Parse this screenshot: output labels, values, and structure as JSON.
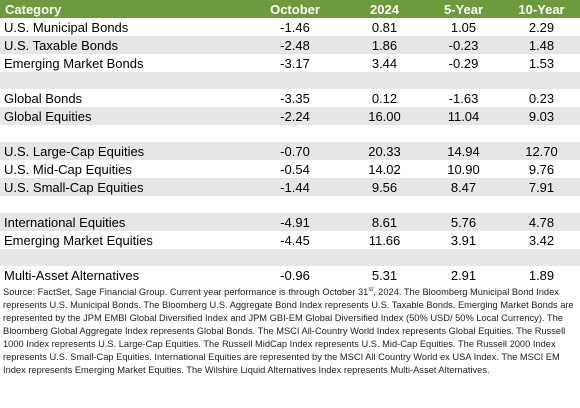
{
  "table": {
    "headers": [
      "Category",
      "October",
      "2024",
      "5-Year",
      "10-Year"
    ],
    "rows": [
      {
        "category": "U.S. Municipal Bonds",
        "october": "-1.46",
        "ytd": "0.81",
        "five_year": "1.05",
        "ten_year": "2.29"
      },
      {
        "category": "U.S. Taxable Bonds",
        "october": "-2.48",
        "ytd": "1.86",
        "five_year": "-0.23",
        "ten_year": "1.48"
      },
      {
        "category": "Emerging Market Bonds",
        "october": "-3.17",
        "ytd": "3.44",
        "five_year": "-0.29",
        "ten_year": "1.53"
      },
      {
        "category": "Global Bonds",
        "october": "-3.35",
        "ytd": "0.12",
        "five_year": "-1.63",
        "ten_year": "0.23"
      },
      {
        "category": "Global Equities",
        "october": "-2.24",
        "ytd": "16.00",
        "five_year": "11.04",
        "ten_year": "9.03"
      },
      {
        "category": "U.S. Large-Cap Equities",
        "october": "-0.70",
        "ytd": "20.33",
        "five_year": "14.94",
        "ten_year": "12.70"
      },
      {
        "category": "U.S. Mid-Cap Equities",
        "october": "-0.54",
        "ytd": "14.02",
        "five_year": "10.90",
        "ten_year": "9.76"
      },
      {
        "category": "U.S. Small-Cap Equities",
        "october": "-1.44",
        "ytd": "9.56",
        "five_year": "8.47",
        "ten_year": "7.91"
      },
      {
        "category": "International Equities",
        "october": "-4.91",
        "ytd": "8.61",
        "five_year": "5.76",
        "ten_year": "4.78"
      },
      {
        "category": "Emerging Market Equities",
        "october": "-4.45",
        "ytd": "11.66",
        "five_year": "3.91",
        "ten_year": "3.42"
      },
      {
        "category": "Multi-Asset Alternatives",
        "october": "-0.96",
        "ytd": "5.31",
        "five_year": "2.91",
        "ten_year": "1.89"
      }
    ]
  },
  "source": {
    "before_sup": "Source: FactSet, Sage Financial Group. Current year performance is through October 31",
    "sup": "st",
    "after_sup": ", 2024. The Bloomberg Municipal Bond Index represents U.S. Municipal Bonds. The Bloomberg U.S. Aggregate Bond Index represents U.S. Taxable Bonds. Emerging Market Bonds are represented by the JPM EMBI Global Diversified Index and JPM GBI-EM Global Diversified Index (50% USD/ 50% Local Currency). The Bloomberg Global Aggregate Index represents Global Bonds. The MSCI All-Country World Index represents Global Equities. The Russell 1000 Index represents U.S. Large-Cap Equities. The Russell MidCap Index represents U.S. Mid-Cap Equities. The Russell 2000 Index represents U.S. Small-Cap Equities. International Equities are represented by the MSCI All Country World ex USA Index. The MSCI EM Index represents Emerging Market Equities. The Wilshire Liquid Alternatives Index represents Multi-Asset Alternatives."
  },
  "colors": {
    "header_bg": "#6c9a3c",
    "band_gray": "#e6e6e6"
  }
}
